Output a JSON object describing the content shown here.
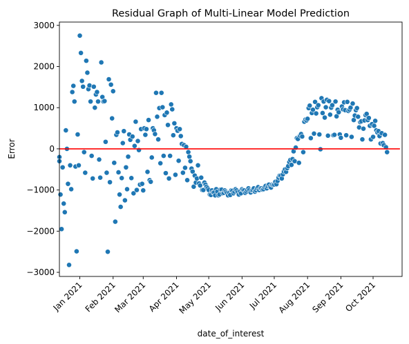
{
  "chart_data": {
    "type": "scatter",
    "title": "Residual Graph of Multi-Linear Model Prediction",
    "xlabel": "date_of_interest",
    "ylabel": "Error",
    "ylim": [
      -3100,
      3080
    ],
    "xlim": [
      "2020-12-13",
      "2021-10-28"
    ],
    "grid": false,
    "legend": "none",
    "x_ticks": [
      {
        "date": "2021-01-01",
        "label": "Jan 2021"
      },
      {
        "date": "2021-02-01",
        "label": "Feb 2021"
      },
      {
        "date": "2021-03-01",
        "label": "Mar 2021"
      },
      {
        "date": "2021-04-01",
        "label": "Apr 2021"
      },
      {
        "date": "2021-05-01",
        "label": "May 2021"
      },
      {
        "date": "2021-06-01",
        "label": "Jun 2021"
      },
      {
        "date": "2021-07-01",
        "label": "Jul 2021"
      },
      {
        "date": "2021-08-01",
        "label": "Aug 2021"
      },
      {
        "date": "2021-09-01",
        "label": "Sep 2021"
      },
      {
        "date": "2021-10-01",
        "label": "Oct 2021"
      }
    ],
    "y_ticks": [
      {
        "value": 3000,
        "label": "3000"
      },
      {
        "value": 2000,
        "label": "2000"
      },
      {
        "value": 1000,
        "label": "1000"
      },
      {
        "value": 0,
        "label": "0"
      },
      {
        "value": -1000,
        "label": "−1000"
      },
      {
        "value": -2000,
        "label": "−2000"
      },
      {
        "value": -3000,
        "label": "−3000"
      }
    ],
    "reference_line": {
      "y": 0,
      "from": "2020-12-13",
      "to": "2021-10-26",
      "color": "#ff0000"
    },
    "marker_color": "#1f77b4",
    "points": [
      [
        "2020-12-13",
        -200
      ],
      [
        "2020-12-13",
        -300
      ],
      [
        "2020-12-14",
        -1110
      ],
      [
        "2020-12-15",
        -1950
      ],
      [
        "2020-12-16",
        -450
      ],
      [
        "2020-12-17",
        -1330
      ],
      [
        "2020-12-18",
        -1540
      ],
      [
        "2020-12-19",
        450
      ],
      [
        "2020-12-20",
        0
      ],
      [
        "2020-12-21",
        -850
      ],
      [
        "2020-12-22",
        -2820
      ],
      [
        "2020-12-23",
        -400
      ],
      [
        "2020-12-24",
        -980
      ],
      [
        "2020-12-25",
        1380
      ],
      [
        "2020-12-26",
        1530
      ],
      [
        "2020-12-27",
        1150
      ],
      [
        "2020-12-28",
        -430
      ],
      [
        "2020-12-29",
        -2490
      ],
      [
        "2020-12-30",
        350
      ],
      [
        "2020-12-31",
        -400
      ],
      [
        "2021-01-01",
        2750
      ],
      [
        "2021-01-02",
        2330
      ],
      [
        "2021-01-03",
        1650
      ],
      [
        "2021-01-04",
        1510
      ],
      [
        "2021-01-05",
        -80
      ],
      [
        "2021-01-06",
        -580
      ],
      [
        "2021-01-07",
        2140
      ],
      [
        "2021-01-08",
        1850
      ],
      [
        "2021-01-09",
        1450
      ],
      [
        "2021-01-10",
        1540
      ],
      [
        "2021-01-11",
        1150
      ],
      [
        "2021-01-12",
        -170
      ],
      [
        "2021-01-13",
        -720
      ],
      [
        "2021-01-14",
        1510
      ],
      [
        "2021-01-15",
        1000
      ],
      [
        "2021-01-16",
        1320
      ],
      [
        "2021-01-17",
        1380
      ],
      [
        "2021-01-18",
        1150
      ],
      [
        "2021-01-19",
        -260
      ],
      [
        "2021-01-20",
        -700
      ],
      [
        "2021-01-21",
        2100
      ],
      [
        "2021-01-22",
        1260
      ],
      [
        "2021-01-23",
        1150
      ],
      [
        "2021-01-24",
        1160
      ],
      [
        "2021-01-25",
        170
      ],
      [
        "2021-01-26",
        -580
      ],
      [
        "2021-01-27",
        -2500
      ],
      [
        "2021-01-28",
        1690
      ],
      [
        "2021-01-29",
        -810
      ],
      [
        "2021-01-30",
        1560
      ],
      [
        "2021-01-31",
        740
      ],
      [
        "2021-02-01",
        1400
      ],
      [
        "2021-02-02",
        -340
      ],
      [
        "2021-02-03",
        -1770
      ],
      [
        "2021-02-04",
        340
      ],
      [
        "2021-02-05",
        400
      ],
      [
        "2021-02-06",
        -570
      ],
      [
        "2021-02-07",
        -1110
      ],
      [
        "2021-02-08",
        -1410
      ],
      [
        "2021-02-09",
        -710
      ],
      [
        "2021-02-10",
        140
      ],
      [
        "2021-02-11",
        430
      ],
      [
        "2021-02-12",
        -1250
      ],
      [
        "2021-02-13",
        -450
      ],
      [
        "2021-02-14",
        -980
      ],
      [
        "2021-02-15",
        -190
      ],
      [
        "2021-02-16",
        350
      ],
      [
        "2021-02-17",
        220
      ],
      [
        "2021-02-18",
        -710
      ],
      [
        "2021-02-19",
        300
      ],
      [
        "2021-02-20",
        -1080
      ],
      [
        "2021-02-21",
        70
      ],
      [
        "2021-02-22",
        660
      ],
      [
        "2021-02-23",
        -1000
      ],
      [
        "2021-02-24",
        190
      ],
      [
        "2021-02-25",
        -30
      ],
      [
        "2021-02-26",
        -870
      ],
      [
        "2021-02-27",
        480
      ],
      [
        "2021-02-28",
        -850
      ],
      [
        "2021-03-01",
        -1010
      ],
      [
        "2021-03-02",
        500
      ],
      [
        "2021-03-03",
        340
      ],
      [
        "2021-03-04",
        480
      ],
      [
        "2021-03-05",
        -560
      ],
      [
        "2021-03-06",
        700
      ],
      [
        "2021-03-07",
        -760
      ],
      [
        "2021-03-08",
        -800
      ],
      [
        "2021-03-09",
        -210
      ],
      [
        "2021-03-10",
        500
      ],
      [
        "2021-03-11",
        450
      ],
      [
        "2021-03-12",
        360
      ],
      [
        "2021-03-13",
        1360
      ],
      [
        "2021-03-14",
        780
      ],
      [
        "2021-03-15",
        230
      ],
      [
        "2021-03-16",
        990
      ],
      [
        "2021-03-17",
        -350
      ],
      [
        "2021-03-18",
        1360
      ],
      [
        "2021-03-19",
        1010
      ],
      [
        "2021-03-20",
        -170
      ],
      [
        "2021-03-21",
        820
      ],
      [
        "2021-03-22",
        -590
      ],
      [
        "2021-03-23",
        880
      ],
      [
        "2021-03-24",
        580
      ],
      [
        "2021-03-25",
        -720
      ],
      [
        "2021-03-26",
        -170
      ],
      [
        "2021-03-27",
        1080
      ],
      [
        "2021-03-28",
        960
      ],
      [
        "2021-03-29",
        330
      ],
      [
        "2021-03-30",
        620
      ],
      [
        "2021-03-31",
        -630
      ],
      [
        "2021-04-01",
        500
      ],
      [
        "2021-04-02",
        440
      ],
      [
        "2021-04-03",
        -290
      ],
      [
        "2021-04-04",
        480
      ],
      [
        "2021-04-05",
        310
      ],
      [
        "2021-04-06",
        120
      ],
      [
        "2021-04-07",
        -580
      ],
      [
        "2021-04-08",
        90
      ],
      [
        "2021-04-09",
        -460
      ],
      [
        "2021-04-10",
        50
      ],
      [
        "2021-04-11",
        -760
      ],
      [
        "2021-04-12",
        -80
      ],
      [
        "2021-04-13",
        -190
      ],
      [
        "2021-04-14",
        -300
      ],
      [
        "2021-04-15",
        -480
      ],
      [
        "2021-04-16",
        -550
      ],
      [
        "2021-04-17",
        -920
      ],
      [
        "2021-04-18",
        -650
      ],
      [
        "2021-04-19",
        -820
      ],
      [
        "2021-04-20",
        -720
      ],
      [
        "2021-04-21",
        -400
      ],
      [
        "2021-04-22",
        -840
      ],
      [
        "2021-04-23",
        -890
      ],
      [
        "2021-04-24",
        -700
      ],
      [
        "2021-04-25",
        -1000
      ],
      [
        "2021-04-26",
        -1000
      ],
      [
        "2021-04-27",
        -820
      ],
      [
        "2021-04-28",
        -870
      ],
      [
        "2021-04-29",
        -920
      ],
      [
        "2021-04-30",
        -960
      ],
      [
        "2021-05-01",
        -1000
      ],
      [
        "2021-05-02",
        -1110
      ],
      [
        "2021-05-03",
        -1120
      ],
      [
        "2021-05-04",
        -1010
      ],
      [
        "2021-05-05",
        -1060
      ],
      [
        "2021-05-06",
        -1060
      ],
      [
        "2021-05-07",
        -1130
      ],
      [
        "2021-05-08",
        -980
      ],
      [
        "2021-05-09",
        -1040
      ],
      [
        "2021-05-10",
        -1130
      ],
      [
        "2021-05-11",
        -1110
      ],
      [
        "2021-05-12",
        -990
      ],
      [
        "2021-05-13",
        -990
      ],
      [
        "2021-05-14",
        -1080
      ],
      [
        "2021-05-15",
        -1070
      ],
      [
        "2021-05-16",
        -1010
      ],
      [
        "2021-05-17",
        -1040
      ],
      [
        "2021-05-18",
        -1070
      ],
      [
        "2021-05-19",
        -1130
      ],
      [
        "2021-05-20",
        -1070
      ],
      [
        "2021-05-21",
        -1120
      ],
      [
        "2021-05-22",
        -1010
      ],
      [
        "2021-05-23",
        -1020
      ],
      [
        "2021-05-24",
        -1080
      ],
      [
        "2021-05-25",
        -1040
      ],
      [
        "2021-05-26",
        -980
      ],
      [
        "2021-05-27",
        -1010
      ],
      [
        "2021-05-28",
        -1050
      ],
      [
        "2021-05-29",
        -1110
      ],
      [
        "2021-05-30",
        -1040
      ],
      [
        "2021-05-31",
        -1080
      ],
      [
        "2021-06-01",
        -980
      ],
      [
        "2021-06-02",
        -1000
      ],
      [
        "2021-06-03",
        -1010
      ],
      [
        "2021-06-04",
        -1070
      ],
      [
        "2021-06-05",
        -1040
      ],
      [
        "2021-06-06",
        -1000
      ],
      [
        "2021-06-07",
        -960
      ],
      [
        "2021-06-08",
        -1000
      ],
      [
        "2021-06-09",
        -1060
      ],
      [
        "2021-06-10",
        -1010
      ],
      [
        "2021-06-11",
        -1000
      ],
      [
        "2021-06-12",
        -960
      ],
      [
        "2021-06-13",
        -1040
      ],
      [
        "2021-06-14",
        -1010
      ],
      [
        "2021-06-15",
        -960
      ],
      [
        "2021-06-16",
        -930
      ],
      [
        "2021-06-17",
        -1000
      ],
      [
        "2021-06-18",
        -960
      ],
      [
        "2021-06-19",
        -960
      ],
      [
        "2021-06-20",
        -990
      ],
      [
        "2021-06-21",
        -980
      ],
      [
        "2021-06-22",
        -930
      ],
      [
        "2021-06-23",
        -900
      ],
      [
        "2021-06-24",
        -960
      ],
      [
        "2021-06-25",
        -910
      ],
      [
        "2021-06-26",
        -870
      ],
      [
        "2021-06-27",
        -920
      ],
      [
        "2021-06-28",
        -940
      ],
      [
        "2021-06-29",
        -870
      ],
      [
        "2021-06-30",
        -880
      ],
      [
        "2021-07-01",
        -870
      ],
      [
        "2021-07-02",
        -800
      ],
      [
        "2021-07-03",
        -860
      ],
      [
        "2021-07-04",
        -780
      ],
      [
        "2021-07-05",
        -700
      ],
      [
        "2021-07-06",
        -650
      ],
      [
        "2021-07-07",
        -650
      ],
      [
        "2021-07-08",
        -720
      ],
      [
        "2021-07-09",
        -620
      ],
      [
        "2021-07-10",
        -550
      ],
      [
        "2021-07-11",
        -500
      ],
      [
        "2021-07-12",
        -560
      ],
      [
        "2021-07-13",
        -470
      ],
      [
        "2021-07-14",
        -420
      ],
      [
        "2021-07-15",
        -320
      ],
      [
        "2021-07-16",
        -270
      ],
      [
        "2021-07-17",
        -390
      ],
      [
        "2021-07-18",
        -250
      ],
      [
        "2021-07-19",
        -60
      ],
      [
        "2021-07-20",
        -300
      ],
      [
        "2021-07-21",
        30
      ],
      [
        "2021-07-22",
        260
      ],
      [
        "2021-07-23",
        240
      ],
      [
        "2021-07-24",
        -340
      ],
      [
        "2021-07-25",
        320
      ],
      [
        "2021-07-26",
        360
      ],
      [
        "2021-07-27",
        300
      ],
      [
        "2021-07-28",
        -80
      ],
      [
        "2021-07-29",
        660
      ],
      [
        "2021-07-30",
        710
      ],
      [
        "2021-07-31",
        690
      ],
      [
        "2021-08-01",
        730
      ],
      [
        "2021-08-02",
        990
      ],
      [
        "2021-08-03",
        1050
      ],
      [
        "2021-08-04",
        260
      ],
      [
        "2021-08-05",
        870
      ],
      [
        "2021-08-06",
        950
      ],
      [
        "2021-08-07",
        370
      ],
      [
        "2021-08-08",
        1140
      ],
      [
        "2021-08-09",
        860
      ],
      [
        "2021-08-10",
        1010
      ],
      [
        "2021-08-11",
        1060
      ],
      [
        "2021-08-12",
        350
      ],
      [
        "2021-08-13",
        -10
      ],
      [
        "2021-08-14",
        1230
      ],
      [
        "2021-08-15",
        870
      ],
      [
        "2021-08-16",
        1150
      ],
      [
        "2021-08-17",
        760
      ],
      [
        "2021-08-18",
        1010
      ],
      [
        "2021-08-19",
        1190
      ],
      [
        "2021-08-20",
        320
      ],
      [
        "2021-08-21",
        1160
      ],
      [
        "2021-08-22",
        830
      ],
      [
        "2021-08-23",
        1000
      ],
      [
        "2021-08-24",
        1060
      ],
      [
        "2021-08-25",
        330
      ],
      [
        "2021-08-26",
        340
      ],
      [
        "2021-08-27",
        1150
      ],
      [
        "2021-08-28",
        790
      ],
      [
        "2021-08-29",
        950
      ],
      [
        "2021-08-30",
        890
      ],
      [
        "2021-08-31",
        350
      ],
      [
        "2021-09-01",
        270
      ],
      [
        "2021-09-02",
        1030
      ],
      [
        "2021-09-03",
        960
      ],
      [
        "2021-09-04",
        1130
      ],
      [
        "2021-09-05",
        940
      ],
      [
        "2021-09-06",
        330
      ],
      [
        "2021-09-07",
        1140
      ],
      [
        "2021-09-08",
        920
      ],
      [
        "2021-09-09",
        950
      ],
      [
        "2021-09-10",
        1000
      ],
      [
        "2021-09-11",
        290
      ],
      [
        "2021-09-12",
        1100
      ],
      [
        "2021-09-13",
        700
      ],
      [
        "2021-09-14",
        810
      ],
      [
        "2021-09-15",
        940
      ],
      [
        "2021-09-16",
        990
      ],
      [
        "2021-09-17",
        780
      ],
      [
        "2021-09-18",
        520
      ],
      [
        "2021-09-19",
        650
      ],
      [
        "2021-09-20",
        670
      ],
      [
        "2021-09-21",
        230
      ],
      [
        "2021-09-22",
        490
      ],
      [
        "2021-09-23",
        690
      ],
      [
        "2021-09-24",
        820
      ],
      [
        "2021-09-25",
        850
      ],
      [
        "2021-09-26",
        700
      ],
      [
        "2021-09-27",
        750
      ],
      [
        "2021-09-28",
        560
      ],
      [
        "2021-09-29",
        230
      ],
      [
        "2021-09-30",
        600
      ],
      [
        "2021-10-01",
        290
      ],
      [
        "2021-10-02",
        560
      ],
      [
        "2021-10-03",
        680
      ],
      [
        "2021-10-04",
        450
      ],
      [
        "2021-10-05",
        400
      ],
      [
        "2021-10-06",
        430
      ],
      [
        "2021-10-07",
        310
      ],
      [
        "2021-10-08",
        130
      ],
      [
        "2021-10-09",
        380
      ],
      [
        "2021-10-10",
        140
      ],
      [
        "2021-10-11",
        90
      ],
      [
        "2021-10-12",
        340
      ],
      [
        "2021-10-13",
        40
      ],
      [
        "2021-10-14",
        -80
      ]
    ]
  }
}
